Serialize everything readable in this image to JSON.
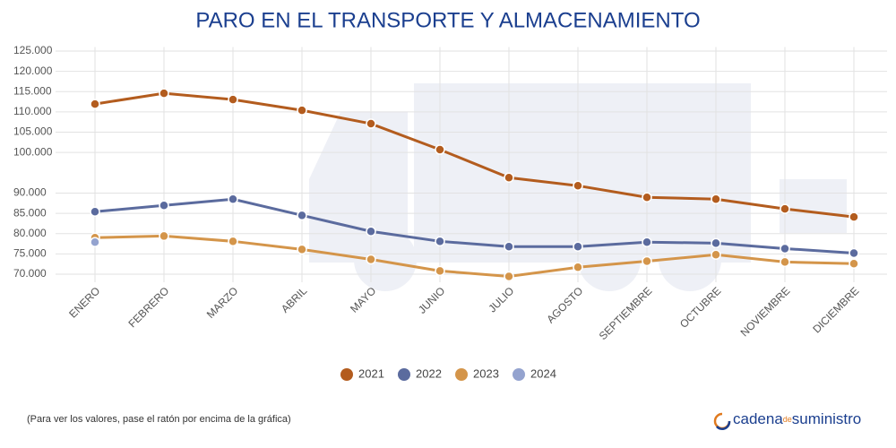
{
  "chart_data": {
    "type": "line",
    "title": "PARO EN EL TRANSPORTE Y ALMACENAMIENTO",
    "categories": [
      "ENERO",
      "FEBRERO",
      "MARZO",
      "ABRIL",
      "MAYO",
      "JUNIO",
      "JULIO",
      "AGOSTO",
      "SEPTIEMBRE",
      "OCTUBRE",
      "NOVIEMBRE",
      "DICIEMBRE"
    ],
    "series": [
      {
        "name": "2021",
        "color": "#b35c1e",
        "values": [
          111950,
          114600,
          113050,
          110400,
          107100,
          100700,
          93800,
          91800,
          88950,
          88500,
          86100,
          84100
        ]
      },
      {
        "name": "2022",
        "color": "#5b6b9e",
        "values": [
          85400,
          86950,
          88500,
          84500,
          80550,
          78100,
          76800,
          76800,
          77900,
          77650,
          76300,
          75200
        ]
      },
      {
        "name": "2023",
        "color": "#d4954a",
        "values": [
          79000,
          79400,
          78100,
          76100,
          73650,
          70800,
          69450,
          71700,
          73200,
          74800,
          73000,
          72600
        ]
      },
      {
        "name": "2024",
        "color": "#94a3cf",
        "values": [
          77900,
          null,
          null,
          null,
          null,
          null,
          null,
          null,
          null,
          null,
          null,
          null
        ]
      }
    ],
    "ylim": [
      68000,
      126000
    ],
    "yticks": [
      {
        "value": 70000,
        "label": "70.000"
      },
      {
        "value": 75000,
        "label": "75.000"
      },
      {
        "value": 80000,
        "label": "80.000"
      },
      {
        "value": 85000,
        "label": "85.000"
      },
      {
        "value": 90000,
        "label": "90.000"
      },
      {
        "value": 100000,
        "label": "100.000"
      },
      {
        "value": 105000,
        "label": "105.000"
      },
      {
        "value": 110000,
        "label": "110.000"
      },
      {
        "value": 115000,
        "label": "115.000"
      },
      {
        "value": 120000,
        "label": "120.000"
      },
      {
        "value": 125000,
        "label": "125.000"
      }
    ],
    "grid": true,
    "legend": "bottom"
  },
  "footer": {
    "note": "(Para ver los valores, pase el ratón por encima de la gráfica)",
    "logo_left": "cadena",
    "logo_mid": "de",
    "logo_right": "suministro"
  }
}
